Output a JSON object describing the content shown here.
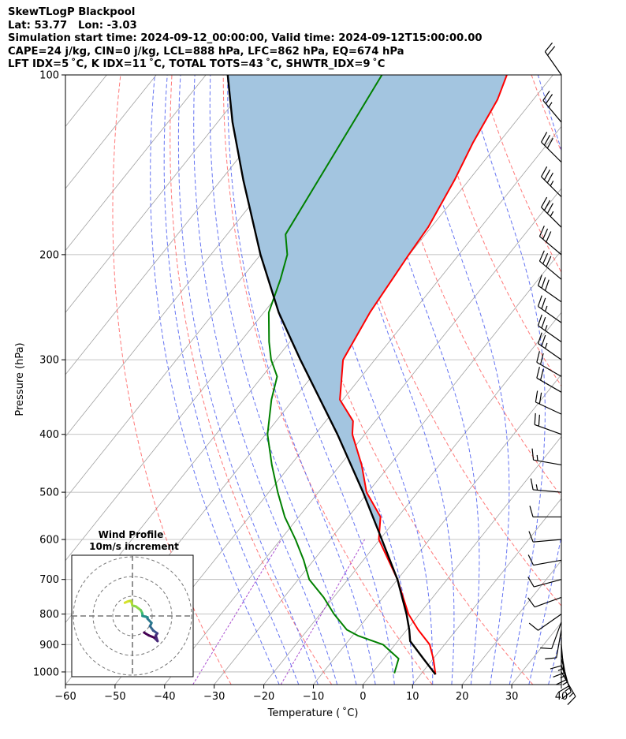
{
  "header": {
    "line1": "SkewTLogP Blackpool",
    "line2": "Lat: 53.77   Lon: -3.03",
    "line3": "Simulation start time: 2024-09-12_00:00:00, Valid time: 2024-09-12T15:00:00.00",
    "line4": "CAPE=24 j/kg, CIN=0 j/kg, LCL=888 hPa, LFC=862 hPa, EQ=674 hPa",
    "line5": "LFT IDX=5 ˚C, K IDX=11 ˚C, TOTAL TOTS=43 ˚C, SHWTR_IDX=9 ˚C"
  },
  "chart_data": {
    "type": "skewt",
    "xlabel": "Temperature ( ˚C)",
    "ylabel": "Pressure (hPa)",
    "xlim": [
      -60,
      40
    ],
    "ylim": [
      1050,
      100
    ],
    "x_ticks": [
      "−60",
      "−50",
      "−40",
      "−30",
      "−20",
      "−10",
      "0",
      "10",
      "20",
      "30",
      "40"
    ],
    "x_tick_values": [
      -60,
      -50,
      -40,
      -30,
      -20,
      -10,
      0,
      10,
      20,
      30,
      40
    ],
    "y_ticks": [
      "1000",
      "900",
      "800",
      "700",
      "600",
      "500",
      "400",
      "300",
      "200",
      "100"
    ],
    "y_tick_values": [
      1000,
      900,
      800,
      700,
      600,
      500,
      400,
      300,
      200,
      100
    ],
    "grid": true,
    "colors": {
      "temperature": "#ff0000",
      "dewpoint": "#008000",
      "parcel": "#000000",
      "cape_fill": "#a3c5e0",
      "dry_adiabat": "#ff6060",
      "moist_adiabat": "#4a5cf0",
      "mixing_ratio": "#9b30c8",
      "isotherm": "#a0a0a0"
    },
    "series": [
      {
        "key": "temperature",
        "pressure": [
          1010,
          950,
          900,
          850,
          800,
          700,
          600,
          550,
          500,
          450,
          400,
          380,
          350,
          300,
          250,
          200,
          180,
          150,
          130,
          110,
          100
        ],
        "values": [
          13.0,
          10.0,
          7.0,
          2.3,
          -2.2,
          -10.0,
          -20.2,
          -23.5,
          -30.3,
          -35.7,
          -42.5,
          -44.5,
          -50.6,
          -56.4,
          -58.6,
          -60.1,
          -60.6,
          -62.9,
          -65.2,
          -67.2,
          -69.3
        ]
      },
      {
        "key": "dewpoint",
        "pressure": [
          1005,
          950,
          900,
          870,
          850,
          800,
          750,
          700,
          650,
          600,
          550,
          500,
          450,
          400,
          350,
          320,
          300,
          280,
          250,
          220,
          200,
          185,
          100
        ],
        "values": [
          4.5,
          3.0,
          -2.4,
          -8.8,
          -12.1,
          -17.2,
          -22.0,
          -27.8,
          -32.0,
          -37.0,
          -42.8,
          -48.2,
          -53.8,
          -59.6,
          -64.4,
          -67.0,
          -70.9,
          -74.2,
          -79.0,
          -82.0,
          -84.6,
          -88.2,
          -94.5
        ]
      },
      {
        "key": "parcel",
        "pressure": [
          1010,
          950,
          888,
          850,
          800,
          700,
          600,
          500,
          400,
          300,
          250,
          200,
          150,
          120,
          100
        ],
        "values": [
          13.0,
          8.0,
          2.5,
          0.5,
          -2.6,
          -10.0,
          -19.6,
          -31.0,
          -45.5,
          -65.0,
          -77.0,
          -90.0,
          -105.5,
          -117.0,
          -125.6
        ]
      }
    ],
    "wind_barbs": {
      "pressure": [
        1000,
        975,
        950,
        925,
        900,
        875,
        850,
        825,
        800,
        750,
        700,
        650,
        600,
        550,
        500,
        450,
        400,
        370,
        340,
        320,
        300,
        280,
        260,
        240,
        220,
        200,
        180,
        160,
        140,
        120,
        100
      ],
      "speed_kt": [
        15,
        15,
        15,
        15,
        15,
        10,
        10,
        10,
        10,
        10,
        10,
        10,
        10,
        10,
        15,
        15,
        20,
        20,
        20,
        20,
        25,
        25,
        25,
        30,
        30,
        30,
        35,
        35,
        30,
        25,
        20
      ],
      "direction_deg": [
        150,
        160,
        165,
        170,
        175,
        180,
        190,
        200,
        235,
        250,
        255,
        260,
        265,
        270,
        275,
        280,
        290,
        295,
        300,
        300,
        305,
        305,
        305,
        305,
        310,
        310,
        315,
        315,
        315,
        320,
        325
      ]
    },
    "wind_profile": {
      "title": "Wind Profile",
      "subtitle": "10m/s increment"
    }
  }
}
